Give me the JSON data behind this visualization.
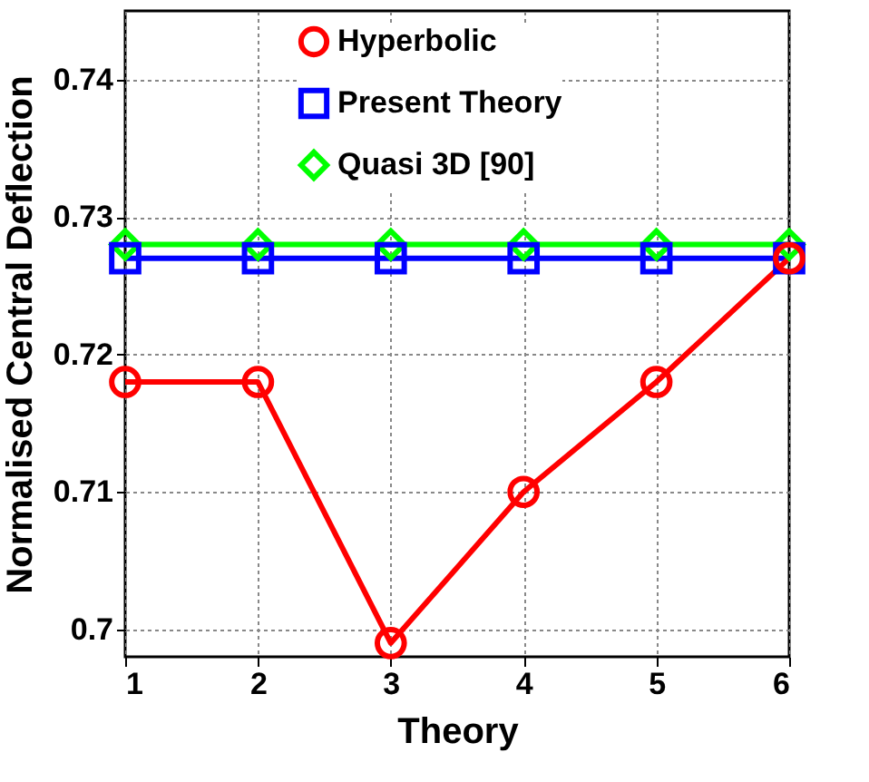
{
  "chart_data": {
    "type": "line",
    "xlabel": "Theory",
    "ylabel": "Normalised Central Deflection",
    "x": [
      1,
      2,
      3,
      4,
      5,
      6
    ],
    "series": [
      {
        "name": "Hyperbolic",
        "color": "#ff0000",
        "marker": "circle",
        "values": [
          0.718,
          0.718,
          0.699,
          0.71,
          0.718,
          0.727
        ]
      },
      {
        "name": "Present Theory",
        "color": "#0000ff",
        "marker": "square",
        "values": [
          0.727,
          0.727,
          0.727,
          0.727,
          0.727,
          0.727
        ]
      },
      {
        "name": "Quasi 3D [90]",
        "color": "#00ff00",
        "marker": "diamond",
        "values": [
          0.728,
          0.728,
          0.728,
          0.728,
          0.728,
          0.728
        ]
      }
    ],
    "xlim": [
      1,
      6
    ],
    "xticks": [
      1,
      2,
      3,
      4,
      5,
      6
    ],
    "ylim": [
      0.698,
      0.745
    ],
    "yticks": [
      0.7,
      0.71,
      0.72,
      0.73,
      0.74
    ],
    "grid": true,
    "legend": "top"
  }
}
